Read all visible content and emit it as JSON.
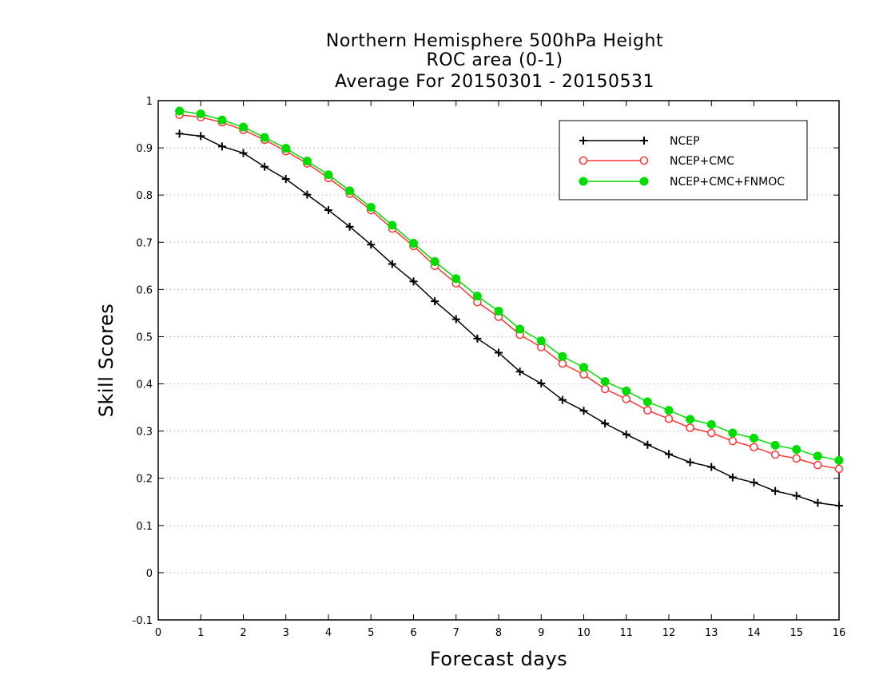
{
  "chart_data": {
    "type": "line",
    "title_lines": [
      "Northern Hemisphere 500hPa Height",
      "ROC area (0-1)",
      "Average For 20150301 - 20150531"
    ],
    "xlabel": "Forecast days",
    "ylabel": "Skill Scores",
    "xlim": [
      0,
      16
    ],
    "ylim": [
      -0.1,
      1
    ],
    "x_ticks": [
      0,
      1,
      2,
      3,
      4,
      5,
      6,
      7,
      8,
      9,
      10,
      11,
      12,
      13,
      14,
      15,
      16
    ],
    "y_ticks": [
      -0.1,
      0,
      0.1,
      0.2,
      0.3,
      0.4,
      0.5,
      0.6,
      0.7,
      0.8,
      0.9,
      1
    ],
    "y_tick_labels": [
      "-0.1",
      "0",
      "0.1",
      "0.2",
      "0.3",
      "0.4",
      "0.5",
      "0.6",
      "0.7",
      "0.8",
      "0.9",
      "1"
    ],
    "grid": "horizontal dotted",
    "legend_position": "top-right",
    "x": [
      0.5,
      1,
      1.5,
      2,
      2.5,
      3,
      3.5,
      4,
      4.5,
      5,
      5.5,
      6,
      6.5,
      7,
      7.5,
      8,
      8.5,
      9,
      9.5,
      10,
      10.5,
      11,
      11.5,
      12,
      12.5,
      13,
      13.5,
      14,
      14.5,
      15,
      15.5,
      16
    ],
    "series": [
      {
        "name": "NCEP",
        "color": "#000000",
        "marker": "plus",
        "values": [
          0.93,
          0.925,
          0.903,
          0.889,
          0.86,
          0.834,
          0.801,
          0.768,
          0.733,
          0.695,
          0.654,
          0.617,
          0.575,
          0.537,
          0.496,
          0.466,
          0.426,
          0.401,
          0.366,
          0.343,
          0.316,
          0.293,
          0.271,
          0.251,
          0.234,
          0.224,
          0.202,
          0.191,
          0.173,
          0.163,
          0.148,
          0.142
        ]
      },
      {
        "name": "NCEP+CMC",
        "color": "#ff3333",
        "marker": "open-circle",
        "values": [
          0.97,
          0.965,
          0.954,
          0.938,
          0.917,
          0.893,
          0.867,
          0.836,
          0.803,
          0.768,
          0.729,
          0.692,
          0.65,
          0.613,
          0.573,
          0.542,
          0.504,
          0.478,
          0.443,
          0.42,
          0.389,
          0.368,
          0.344,
          0.326,
          0.307,
          0.296,
          0.279,
          0.266,
          0.25,
          0.242,
          0.228,
          0.22
        ]
      },
      {
        "name": "NCEP+CMC+FNMOC",
        "color": "#00dd00",
        "marker": "filled-circle",
        "values": [
          0.978,
          0.972,
          0.959,
          0.944,
          0.922,
          0.899,
          0.872,
          0.843,
          0.809,
          0.774,
          0.736,
          0.698,
          0.659,
          0.623,
          0.586,
          0.554,
          0.516,
          0.491,
          0.458,
          0.435,
          0.405,
          0.385,
          0.362,
          0.344,
          0.325,
          0.314,
          0.296,
          0.285,
          0.27,
          0.261,
          0.247,
          0.238
        ]
      }
    ]
  }
}
